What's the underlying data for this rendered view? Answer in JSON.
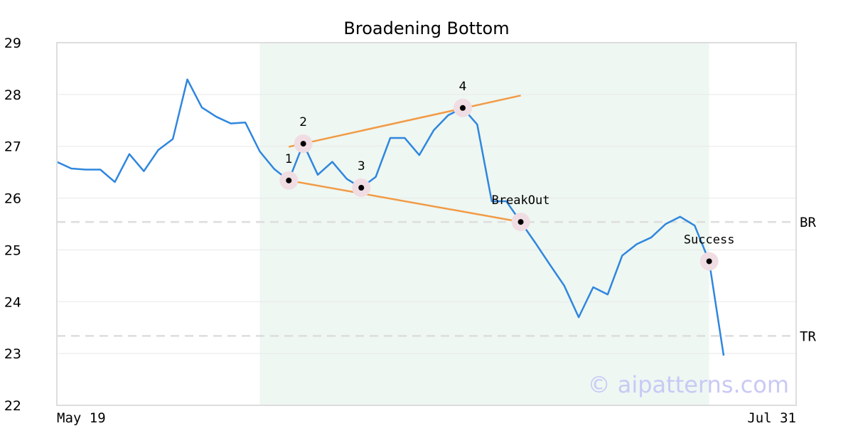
{
  "chart_data": {
    "type": "line",
    "title": "Broadening Bottom",
    "xlabel": "",
    "ylabel": "",
    "ylim": [
      22,
      29
    ],
    "yticks": [
      22,
      23,
      24,
      25,
      26,
      27,
      28,
      29
    ],
    "x_range": [
      0,
      51
    ],
    "x_tick_labels": [
      {
        "x": 0,
        "label": "May 19"
      },
      {
        "x": 51,
        "label": "Jul 31"
      }
    ],
    "series": [
      {
        "color": "#2f86de",
        "values": [
          26.7,
          26.57,
          26.55,
          26.55,
          26.31,
          26.85,
          26.52,
          26.93,
          27.14,
          28.29,
          27.75,
          27.57,
          27.44,
          27.46,
          26.9,
          26.56,
          26.34,
          27.05,
          26.45,
          26.7,
          26.37,
          26.2,
          26.41,
          27.16,
          27.16,
          26.83,
          27.31,
          27.6,
          27.74,
          27.42,
          25.94,
          25.94,
          25.54,
          25.14,
          24.72,
          24.31,
          23.7,
          24.28,
          24.14,
          24.89,
          25.11,
          25.24,
          25.5,
          25.64,
          25.47,
          24.78,
          22.96
        ]
      }
    ],
    "highlight_region": {
      "x_start": 14,
      "x_end": 45,
      "color": "#eef7f2"
    },
    "trend_lines": [
      {
        "x1": 16,
        "y1": 26.99,
        "x2": 32,
        "y2": 27.98,
        "color": "#f29a45"
      },
      {
        "x1": 16,
        "y1": 26.34,
        "x2": 32,
        "y2": 25.54,
        "color": "#f29a45"
      }
    ],
    "points": [
      {
        "label": "1",
        "x": 16,
        "y": 26.34
      },
      {
        "label": "2",
        "x": 17,
        "y": 27.05
      },
      {
        "label": "3",
        "x": 21,
        "y": 26.2
      },
      {
        "label": "4",
        "x": 28,
        "y": 27.74
      },
      {
        "label": "BreakOut",
        "x": 32,
        "y": 25.54
      },
      {
        "label": "Success",
        "x": 45,
        "y": 24.78
      }
    ],
    "levels": [
      {
        "label": "BR",
        "y": 25.54
      },
      {
        "label": "TR",
        "y": 23.34
      }
    ],
    "grid": true,
    "watermark": "© aipatterns.com"
  }
}
